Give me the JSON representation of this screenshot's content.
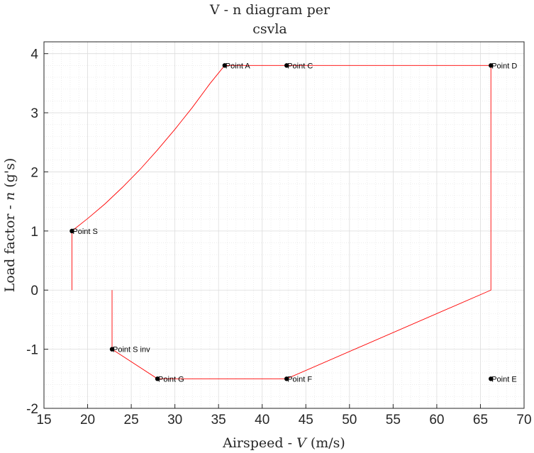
{
  "chart_data": {
    "type": "line",
    "title_lines": [
      "V - n diagram per",
      "csvla"
    ],
    "xlabel_pre": "Airspeed - ",
    "xlabel_var": "V",
    "xlabel_post": " (m/s)",
    "ylabel_pre": "Load factor - ",
    "ylabel_var": "n",
    "ylabel_post": " (g's)",
    "xlim": [
      15,
      70
    ],
    "ylim": [
      -2,
      4.2
    ],
    "xticks": [
      15,
      20,
      25,
      30,
      35,
      40,
      45,
      50,
      55,
      60,
      65,
      70
    ],
    "yticks": [
      -2,
      -1,
      0,
      1,
      2,
      3,
      4
    ],
    "grid": "major and minor",
    "line_color": "#ff0000",
    "points": [
      {
        "label": "Point S",
        "x": 18.2,
        "y": 1.0
      },
      {
        "label": "Point A",
        "x": 35.7,
        "y": 3.8
      },
      {
        "label": "Point C",
        "x": 42.8,
        "y": 3.8
      },
      {
        "label": "Point D",
        "x": 66.2,
        "y": 3.8
      },
      {
        "label": "Point E",
        "x": 66.2,
        "y": -1.5
      },
      {
        "label": "Point F",
        "x": 42.8,
        "y": -1.5
      },
      {
        "label": "Point G",
        "x": 28.0,
        "y": -1.5
      },
      {
        "label": "Point S inv",
        "x": 22.8,
        "y": -1.0
      }
    ],
    "envelope": {
      "x": [
        18.2,
        18.2,
        20.0,
        22.0,
        24.0,
        26.0,
        28.0,
        30.0,
        32.0,
        34.0,
        35.7,
        42.8,
        66.2,
        66.2,
        66.2,
        42.8,
        28.0,
        22.8,
        22.8
      ],
      "y": [
        0.0,
        1.0,
        1.21,
        1.46,
        1.74,
        2.04,
        2.37,
        2.72,
        3.09,
        3.49,
        3.8,
        3.8,
        3.8,
        0.0,
        0.0,
        -1.5,
        -1.5,
        -1.0,
        0.0
      ]
    }
  }
}
